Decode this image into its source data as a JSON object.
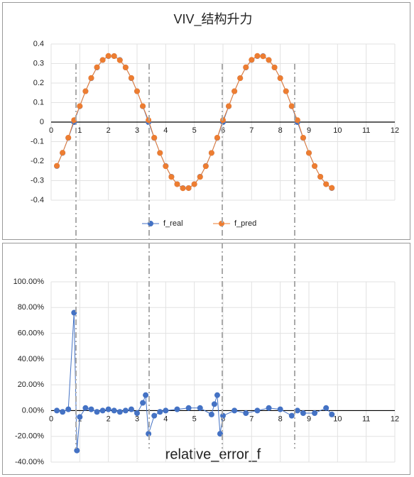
{
  "chart_data": [
    {
      "type": "line",
      "title": "VIV_结构升力",
      "x": [
        0.2,
        0.4,
        0.6,
        0.8,
        1.0,
        1.2,
        1.4,
        1.6,
        1.8,
        2.0,
        2.2,
        2.4,
        2.6,
        2.8,
        3.0,
        3.2,
        3.4,
        3.6,
        3.8,
        4.0,
        4.2,
        4.4,
        4.6,
        4.8,
        5.0,
        5.2,
        5.4,
        5.6,
        5.8,
        6.0,
        6.2,
        6.4,
        6.6,
        6.8,
        7.0,
        7.2,
        7.4,
        7.6,
        7.8,
        8.0,
        8.2,
        8.4,
        8.6,
        8.8,
        9.0,
        9.2,
        9.4,
        9.6,
        9.8
      ],
      "series": [
        {
          "name": "f_real",
          "color": "#4472c4",
          "values": [
            -0.225,
            -0.158,
            -0.081,
            0,
            0.081,
            0.158,
            0.225,
            0.28,
            0.318,
            0.338,
            0.338,
            0.318,
            0.28,
            0.225,
            0.158,
            0.081,
            0,
            -0.081,
            -0.158,
            -0.225,
            -0.28,
            -0.318,
            -0.338,
            -0.338,
            -0.318,
            -0.28,
            -0.225,
            -0.158,
            -0.081,
            0,
            0.081,
            0.158,
            0.225,
            0.28,
            0.318,
            0.338,
            0.338,
            0.318,
            0.28,
            0.225,
            0.158,
            0.081,
            0,
            -0.081,
            -0.158,
            -0.225,
            -0.28,
            -0.318,
            -0.338
          ]
        },
        {
          "name": "f_pred",
          "color": "#ed7d31",
          "values": [
            -0.224,
            -0.157,
            -0.08,
            0.01,
            0.082,
            0.158,
            0.226,
            0.281,
            0.318,
            0.339,
            0.338,
            0.317,
            0.28,
            0.226,
            0.158,
            0.082,
            0.01,
            -0.08,
            -0.158,
            -0.226,
            -0.281,
            -0.318,
            -0.339,
            -0.338,
            -0.318,
            -0.281,
            -0.226,
            -0.158,
            -0.08,
            0.01,
            0.082,
            0.158,
            0.225,
            0.281,
            0.319,
            0.339,
            0.337,
            0.318,
            0.28,
            0.225,
            0.158,
            0.082,
            0.01,
            -0.08,
            -0.158,
            -0.225,
            -0.28,
            -0.318,
            -0.337
          ]
        }
      ],
      "xlim": [
        0,
        12
      ],
      "xticks": [
        0,
        1,
        2,
        3,
        4,
        5,
        6,
        7,
        8,
        9,
        10,
        11,
        12
      ],
      "ylim": [
        -0.4,
        0.4
      ],
      "yticks": [
        -0.4,
        -0.3,
        -0.2,
        -0.1,
        0,
        0.1,
        0.2,
        0.3,
        0.4
      ],
      "grid": true,
      "legend": "bottom"
    },
    {
      "type": "line",
      "title": "relative_error_f",
      "x": [
        0.2,
        0.4,
        0.6,
        0.8,
        0.9,
        1.0,
        1.2,
        1.4,
        1.6,
        1.8,
        2.0,
        2.2,
        2.4,
        2.6,
        2.8,
        3.0,
        3.2,
        3.3,
        3.4,
        3.6,
        3.8,
        4.0,
        4.4,
        4.8,
        5.2,
        5.6,
        5.7,
        5.8,
        5.9,
        6.0,
        6.4,
        6.8,
        7.2,
        7.6,
        8.0,
        8.4,
        8.6,
        8.8,
        9.2,
        9.6,
        9.8
      ],
      "series": [
        {
          "color": "#4472c4",
          "values": [
            0,
            -1,
            1,
            76,
            -31,
            -5,
            2,
            1,
            -1,
            0,
            1,
            0,
            -1,
            0,
            1,
            -2,
            6,
            12,
            -18,
            -4,
            -1,
            0,
            1,
            2,
            2,
            -3,
            5,
            12,
            -18,
            -4,
            0,
            -2,
            0,
            2,
            1,
            -4,
            0,
            -2,
            -2,
            2,
            -3
          ]
        }
      ],
      "xlim": [
        0,
        12
      ],
      "xticks": [
        0,
        1,
        2,
        3,
        4,
        5,
        6,
        7,
        8,
        9,
        10,
        11,
        12
      ],
      "ylim": [
        -40,
        100
      ],
      "yticks": [
        {
          "value": -40,
          "label": "-40.00%"
        },
        {
          "value": -20,
          "label": "-20.00%"
        },
        {
          "value": 0,
          "label": "0.00%"
        },
        {
          "value": 20,
          "label": "20.00%"
        },
        {
          "value": 40,
          "label": "40.00%"
        },
        {
          "value": 60,
          "label": "60.00%"
        },
        {
          "value": 80,
          "label": "80.00%"
        },
        {
          "value": 100,
          "label": "100.00%"
        }
      ],
      "grid": true
    }
  ]
}
